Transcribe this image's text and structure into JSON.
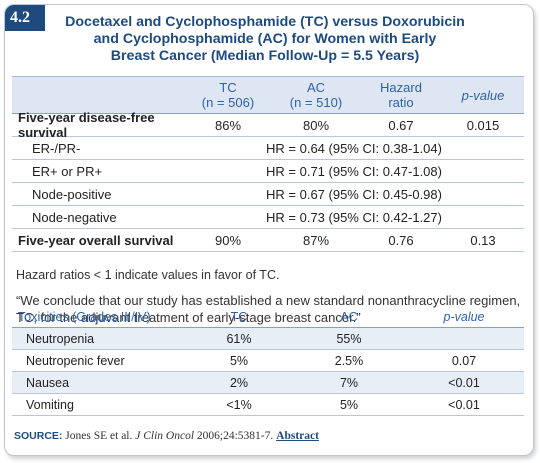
{
  "figure": {
    "number": "4.2",
    "title_line1": "Docetaxel and Cyclophosphamide (TC) versus Doxorubicin",
    "title_line2": "and Cyclophosphamide (AC) for Women with Early",
    "title_line3": "Breast Cancer (Median Follow-Up = 5.5 Years)"
  },
  "survival_table": {
    "headers": {
      "tc_line1": "TC",
      "tc_line2": "(n = 506)",
      "ac_line1": "AC",
      "ac_line2": "(n = 510)",
      "hr_line1": "Hazard",
      "hr_line2": "ratio",
      "pvalue": "p-value"
    },
    "dfs": {
      "label": "Five-year disease-free survival",
      "tc": "86%",
      "ac": "80%",
      "hr": "0.67",
      "p": "0.015"
    },
    "subgroups": [
      {
        "label": "ER-/PR-",
        "value": "HR = 0.64 (95% CI: 0.38-1.04)"
      },
      {
        "label": "ER+ or PR+",
        "value": "HR = 0.71 (95% CI: 0.47-1.08)"
      },
      {
        "label": "Node-positive",
        "value": "HR = 0.67 (95% CI: 0.45-0.98)"
      },
      {
        "label": "Node-negative",
        "value": "HR = 0.73 (95% CI: 0.42-1.27)"
      }
    ],
    "os": {
      "label": "Five-year overall survival",
      "tc": "90%",
      "ac": "87%",
      "hr": "0.76",
      "p": "0.13"
    }
  },
  "note": "Hazard ratios < 1 indicate values in favor of TC.",
  "quote": "“We conclude that our study has established a new standard nonanthracycline regimen, TC, for the adjuvant treatment of early-stage breast cancer.”",
  "toxicity_table": {
    "headers": {
      "label": "Toxicities (Grades III/IV)",
      "tc": "TC",
      "ac": "AC",
      "p": "p-value"
    },
    "rows": [
      {
        "label": "Neutropenia",
        "tc": "61%",
        "ac": "55%",
        "p": ""
      },
      {
        "label": "Neutropenic fever",
        "tc": "5%",
        "ac": "2.5%",
        "p": "0.07"
      },
      {
        "label": "Nausea",
        "tc": "2%",
        "ac": "7%",
        "p": "<0.01"
      },
      {
        "label": "Vomiting",
        "tc": "<1%",
        "ac": "5%",
        "p": "<0.01"
      }
    ]
  },
  "source": {
    "key": "SOURCE:",
    "citation_pre": "Jones SE et al. ",
    "journal": "J Clin Oncol",
    "citation_post": " 2006;24:5381-7.",
    "link": "Abstract"
  }
}
